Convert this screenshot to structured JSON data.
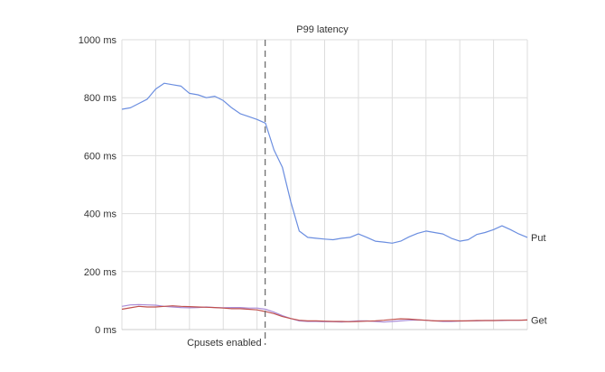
{
  "chart_data": {
    "type": "line",
    "title": "P99 latency",
    "xlabel": "",
    "ylabel": "",
    "ylim": [
      0,
      1000
    ],
    "yticks": [
      "0 ms",
      "200 ms",
      "400 ms",
      "600 ms",
      "800 ms",
      "1000 ms"
    ],
    "ytick_values": [
      0,
      200,
      400,
      600,
      800,
      1000
    ],
    "xlim": [
      0,
      12
    ],
    "grid": true,
    "annotation": {
      "label": "Cpusets enabled",
      "x": 4.24,
      "style": "dashed vertical line"
    },
    "x": [
      0,
      0.25,
      0.5,
      0.75,
      1,
      1.25,
      1.5,
      1.75,
      2,
      2.25,
      2.5,
      2.75,
      3,
      3.25,
      3.5,
      3.75,
      4,
      4.25,
      4.5,
      4.75,
      5,
      5.25,
      5.5,
      5.75,
      6,
      6.25,
      6.5,
      6.75,
      7,
      7.25,
      7.5,
      7.75,
      8,
      8.25,
      8.5,
      8.75,
      9,
      9.25,
      9.5,
      9.75,
      10,
      10.25,
      10.5,
      10.75,
      11,
      11.25,
      11.5,
      11.75,
      12
    ],
    "series": [
      {
        "name": "Put",
        "color": "#6b8ee0",
        "label_visible": true,
        "values": [
          760,
          765,
          780,
          795,
          830,
          850,
          845,
          840,
          815,
          810,
          800,
          805,
          790,
          765,
          745,
          735,
          725,
          712,
          620,
          560,
          440,
          340,
          318,
          315,
          312,
          310,
          315,
          318,
          330,
          318,
          305,
          302,
          298,
          305,
          320,
          332,
          340,
          335,
          330,
          315,
          305,
          310,
          328,
          335,
          345,
          358,
          345,
          330,
          318
        ]
      },
      {
        "name": "Get",
        "color": "#c0504d",
        "label_visible": true,
        "values": [
          70,
          75,
          80,
          78,
          78,
          80,
          82,
          80,
          79,
          78,
          77,
          76,
          74,
          72,
          72,
          70,
          68,
          62,
          55,
          45,
          38,
          32,
          30,
          30,
          29,
          28,
          28,
          27,
          28,
          29,
          30,
          32,
          35,
          37,
          36,
          34,
          32,
          30,
          30,
          30,
          30,
          30,
          31,
          31,
          31,
          32,
          32,
          32,
          33
        ]
      },
      {
        "color": "#a98bd6",
        "label_visible": false,
        "values": [
          80,
          85,
          86,
          85,
          84,
          80,
          78,
          76,
          75,
          76,
          78,
          76,
          75,
          76,
          76,
          74,
          74,
          70,
          60,
          48,
          38,
          30,
          28,
          28,
          27,
          27,
          26,
          28,
          30,
          30,
          28,
          26,
          28,
          30,
          32,
          33,
          32,
          30,
          28,
          28,
          29,
          30,
          30,
          31,
          31,
          31,
          32,
          32,
          33
        ]
      }
    ]
  }
}
